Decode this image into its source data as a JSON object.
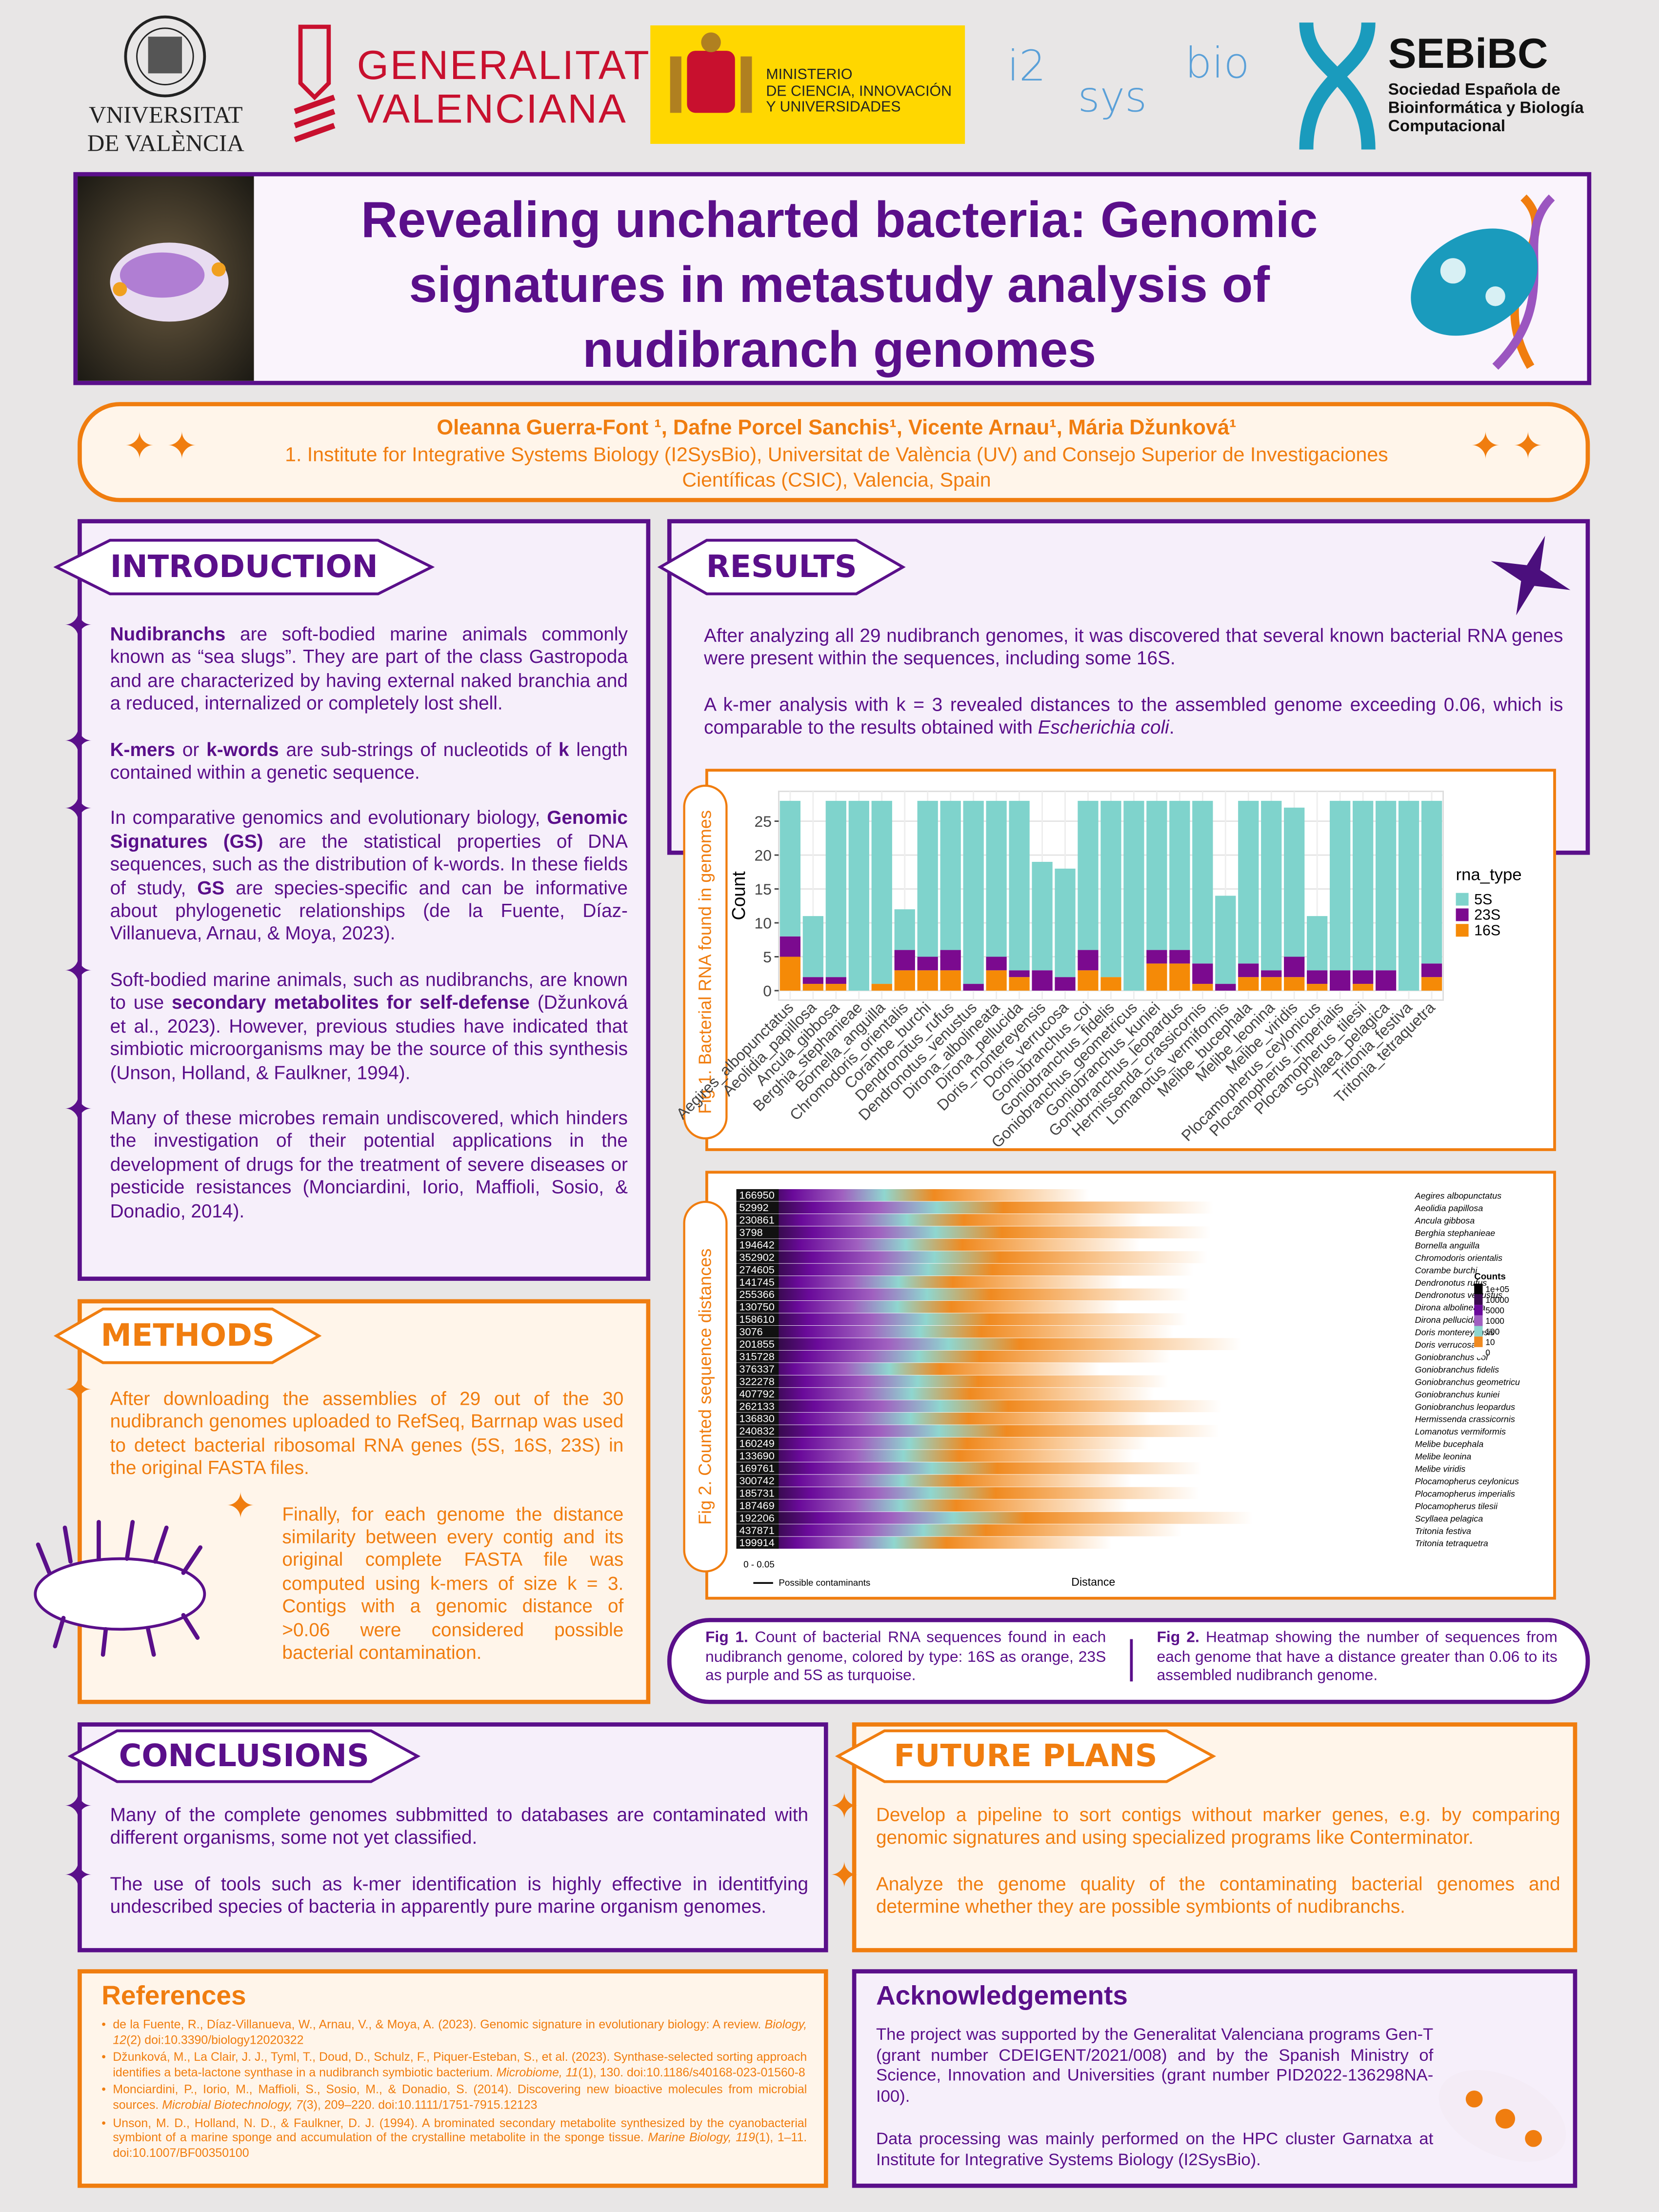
{
  "header": {
    "uv": [
      "VNIVERSITAT",
      "DE VALÈNCIA"
    ],
    "gva": [
      "GENERALITAT",
      "VALENCIANA"
    ],
    "ministerio": [
      "MINISTERIO",
      "DE CIENCIA, INNOVACIÓN",
      "Y UNIVERSIDADES"
    ],
    "i2sysbio": [
      "i2",
      "sys",
      "bio"
    ],
    "sebibc": {
      "name": "SEBiBC",
      "lines": [
        "Sociedad Española de",
        "Bioinformática y Biología",
        "Computacional"
      ]
    }
  },
  "title": [
    "Revealing uncharted bacteria: Genomic",
    "signatures in metastudy analysis of",
    "nudibranch genomes"
  ],
  "authors": "Oleanna Guerra-Font ¹, Dafne Porcel Sanchis¹, Vicente Arnau¹, Mária Džunková¹",
  "affiliation": "1. Institute for Integrative Systems Biology (I2SysBio), Universitat de València (UV) and Consejo Superior de Investigaciones Científicas (CSIC), Valencia, Spain",
  "introduction": {
    "heading": "INTRODUCTION",
    "paragraphs": [
      [
        {
          "bold": "Nudibranchs"
        },
        " are soft-bodied marine animals commonly known as “sea slugs”. They are part of the class Gastropoda and are characterized by having external naked branchia and a reduced, internalized or completely lost shell."
      ],
      [
        {
          "bold": "K-mers"
        },
        " or ",
        {
          "bold": "k-words"
        },
        " are sub-strings of nucleotids of ",
        {
          "bold": "k"
        },
        " length contained within a genetic sequence."
      ],
      [
        "In comparative genomics and evolutionary biology, ",
        {
          "bold": "Genomic Signatures (GS)"
        },
        " are the statistical properties of DNA sequences, such as the distribution of k-words. In these fields of study, ",
        {
          "bold": "GS"
        },
        " are species-specific and can be informative about phylogenetic relationships (de la Fuente, Díaz-Villanueva, Arnau, & Moya, 2023)."
      ],
      [
        "Soft-bodied marine animals, such as nudibranchs, are known to use ",
        {
          "bold": "secondary metabolites for self-defense"
        },
        " (Džunková et al., 2023). However, previous studies have indicated that simbiotic microorganisms may be the source of this synthesis (Unson, Holland, & Faulkner, 1994)."
      ],
      [
        "Many of these microbes remain undiscovered, which hinders the investigation of their potential applications in the development of drugs for the treatment of severe diseases or pesticide resistances (Monciardini, Iorio, Maffioli, Sosio, & Donadio, 2014)."
      ]
    ]
  },
  "methods": {
    "heading": "METHODS",
    "paragraphs": [
      [
        "After downloading the assemblies of 29 out of the 30 nudibranch genomes uploaded to RefSeq, Barrnap was used to detect bacterial ribosomal RNA genes (5S, 16S, 23S) in the original FASTA files."
      ],
      [
        "Finally, for each genome the distance similarity between every contig and its original complete FASTA file was computed using k-mers of size k = 3. Contigs with a genomic distance of >0.06 were considered possible bacterial contamination."
      ]
    ]
  },
  "results": {
    "heading": "RESULTS",
    "paragraphs": [
      [
        "After analyzing all 29 nudibranch genomes, it was discovered that several known bacterial RNA genes were present within the sequences, including some 16S."
      ],
      [
        "A k-mer analysis with k = 3 revealed distances to the assembled genome exceeding 0.06, which is comparable to the results obtained with ",
        {
          "italic": "Escherichia coli"
        },
        "."
      ]
    ]
  },
  "chart_data": {
    "type": "bar",
    "stacked": true,
    "figure_label": "Fig 1. Bacterial RNA found in genomes",
    "y_label": "Count",
    "legend_title": "rna_type",
    "categories": [
      "Aegires_albopunctatus",
      "Aeolidia_papillosa",
      "Ancula_gibbosa",
      "Berghia_stephanieae",
      "Bornella_anguilla",
      "Chromodoris_orientalis",
      "Corambe_burchi",
      "Dendronotus_rufus",
      "Dendronotus_venustus",
      "Dirona_albolineata",
      "Dirona_pellucida",
      "Doris_montereyensis",
      "Doris_verrucosa",
      "Goniobranchus_coi",
      "Goniobranchus_fidelis",
      "Goniobranchus_geometricus",
      "Goniobranchus_kuniei",
      "Goniobranchus_leopardus",
      "Hermissenda_crassicornis",
      "Lomanotus_vermiformis",
      "Melibe_bucephala",
      "Melibe_leonina",
      "Melibe_viridis",
      "Plocamopherus_ceylonicus",
      "Plocamopherus_imperialis",
      "Plocamopherus_tilesii",
      "Scyllaea_pelagica",
      "Tritonia_festiva",
      "Tritonia_tetraquetra"
    ],
    "series": [
      {
        "name": "16S",
        "color": "#f58a07",
        "values": [
          5,
          1,
          1,
          0,
          1,
          3,
          3,
          3,
          0,
          3,
          2,
          0,
          0,
          3,
          2,
          0,
          4,
          4,
          1,
          0,
          2,
          2,
          2,
          1,
          0,
          1,
          0,
          0,
          2
        ]
      },
      {
        "name": "23S",
        "color": "#7b0a8f",
        "values": [
          3,
          1,
          1,
          0,
          0,
          3,
          2,
          3,
          1,
          2,
          1,
          3,
          2,
          3,
          0,
          0,
          2,
          2,
          3,
          1,
          2,
          1,
          3,
          2,
          3,
          2,
          3,
          0,
          2
        ]
      },
      {
        "name": "5S",
        "color": "#7fd3cc",
        "values": [
          20,
          9,
          26,
          28,
          27,
          6,
          23,
          22,
          27,
          23,
          25,
          16,
          16,
          22,
          26,
          28,
          22,
          22,
          24,
          13,
          24,
          25,
          22,
          8,
          25,
          25,
          25,
          28,
          24
        ]
      }
    ],
    "ylim": [
      -1.4,
      29.4
    ],
    "yticks": [
      0,
      5,
      10,
      15,
      20,
      25
    ],
    "grid": true
  },
  "figure_2": {
    "figure_label": "Fig 2. Counted sequence distances",
    "counts": [
      166950,
      52992,
      230861,
      3798,
      194642,
      352902,
      274605,
      141745,
      255366,
      130750,
      158610,
      3076,
      201855,
      315728,
      376337,
      322278,
      407792,
      262133,
      136830,
      240832,
      160249,
      133690,
      169761,
      300742,
      185731,
      187469,
      192206,
      437871,
      199914
    ],
    "genomes": [
      "Aegires albopunctatus",
      "Aeolidia papillosa",
      "Ancula gibbosa",
      "Berghia stephanieae",
      "Bornella anguilla",
      "Chromodoris orientalis",
      "Corambe burchi",
      "Dendronotus rufus",
      "Dendronotus venustus",
      "Dirona albolineata",
      "Dirona pellucida",
      "Doris montereyensis",
      "Doris verrucosa",
      "Goniobranchus coi",
      "Goniobranchus fidelis",
      "Goniobranchus geometricu",
      "Goniobranchus kuniei",
      "Goniobranchus leopardus",
      "Hermissenda crassicornis",
      "Lomanotus vermiformis",
      "Melibe bucephala",
      "Melibe leonina",
      "Melibe viridis",
      "Plocamopherus ceylonicus",
      "Plocamopherus imperialis",
      "Plocamopherus tilesii",
      "Scyllaea pelagica",
      "Tritonia festiva",
      "Tritonia tetraquetra"
    ],
    "legend_title": "Counts",
    "legend_labels": [
      "1e+05",
      "10000",
      "5000",
      "1000",
      "100",
      "10",
      "0"
    ],
    "first_bin": "0 - 0.05",
    "arrow_label": "Possible contaminants",
    "x_label": "Distance"
  },
  "captions": [
    [
      {
        "bold": "Fig 1."
      },
      " Count of bacterial RNA sequences found in each nudibranch genome, colored by type: 16S as orange, 23S as purple and 5S as turquoise."
    ],
    [
      {
        "bold": "Fig 2."
      },
      " Heatmap showing the number of sequences from each genome that have a distance greater than 0.06 to its assembled nudibranch genome."
    ]
  ],
  "conclusions": {
    "heading": "CONCLUSIONS",
    "paragraphs": [
      [
        "Many of the complete genomes subbmitted to databases are contaminated with different organisms, some not yet classified."
      ],
      [
        "The use of tools such as k-mer identification is highly effective in identitfying undescribed species of bacteria in apparently pure marine organism genomes."
      ]
    ]
  },
  "future_plans": {
    "heading": "FUTURE PLANS",
    "paragraphs": [
      [
        "Develop a pipeline to sort contigs without marker genes, e.g.  by comparing genomic signatures and using specialized programs like Conterminator."
      ],
      [
        "Analyze the genome quality of the contaminating bacterial genomes and determine whether they are possible symbionts of nudibranchs."
      ]
    ]
  },
  "references": {
    "heading": "References",
    "paragraphs": [
      [
        "de la Fuente, R., Díaz-Villanueva, W., Arnau, V., & Moya, A. (2023). Genomic signature in evolutionary biology: A review. ",
        {
          "italic": "Biology, 12"
        },
        "(2) doi:10.3390/biology12020322"
      ],
      [
        "Džunková, M., La Clair, J. J., Tyml, T., Doud, D., Schulz, F., Piquer-Esteban, S., et al. (2023). Synthase-selected sorting approach identifies a beta-lactone synthase in a nudibranch symbiotic bacterium. ",
        {
          "italic": "Microbiome, 11"
        },
        "(1), 130. doi:10.1186/s40168-023-01560-8"
      ],
      [
        "Monciardini, P., Iorio, M., Maffioli, S., Sosio, M., & Donadio, S. (2014). Discovering new bioactive molecules from microbial sources. ",
        {
          "italic": "Microbial Biotechnology, 7"
        },
        "(3), 209–220. doi:10.1111/1751-7915.12123"
      ],
      [
        "Unson, M. D., Holland, N. D., & Faulkner, D. J. (1994). A brominated secondary metabolite synthesized by the cyanobacterial symbiont of a marine sponge and accumulation of the crystalline metabolite in the sponge tissue. ",
        {
          "italic": "Marine Biology, 119"
        },
        "(1), 1–11. doi:10.1007/BF00350100"
      ]
    ]
  },
  "acknowledgements": {
    "heading": "Acknowledgements",
    "paragraphs": [
      [
        "The project was supported by the Generalitat Valenciana programs Gen-T (grant number CDEIGENT/2021/008) and by the Spanish Ministry of Science, Innovation and Universities (grant number PID2022-136298NA-I00)."
      ],
      [
        "Data processing was mainly performed on the HPC cluster Garnatxa at Institute for Integrative Systems Biology (I2SysBio)."
      ]
    ]
  }
}
